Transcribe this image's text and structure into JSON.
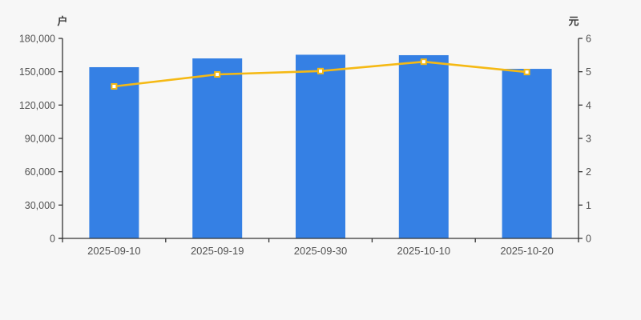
{
  "chart_data": {
    "type": "bar",
    "subtype": "bar-with-line-dual-axis",
    "categories": [
      "2025-09-10",
      "2025-09-19",
      "2025-09-30",
      "2025-10-10",
      "2025-10-20"
    ],
    "series": [
      {
        "id": "bar-series",
        "type": "bar",
        "axis": "left",
        "color": "#3580e4",
        "values": [
          154100,
          162000,
          165300,
          164900,
          152600
        ]
      },
      {
        "id": "line-series",
        "type": "line",
        "axis": "right",
        "color": "#f5b914",
        "marker": "square",
        "marker_fill": "#ffffff",
        "values": [
          4.56,
          4.92,
          5.02,
          5.3,
          4.99
        ]
      }
    ],
    "left_axis": {
      "title": "户",
      "min": 0,
      "max": 180000,
      "ticks": [
        0,
        30000,
        60000,
        90000,
        120000,
        150000,
        180000
      ],
      "tick_labels": [
        "0",
        "30,000",
        "60,000",
        "90,000",
        "120,000",
        "150,000",
        "180,000"
      ]
    },
    "right_axis": {
      "title": "元",
      "min": 0,
      "max": 6,
      "ticks": [
        0,
        1,
        2,
        3,
        4,
        5,
        6
      ],
      "tick_labels": [
        "0",
        "1",
        "2",
        "3",
        "4",
        "5",
        "6"
      ]
    },
    "grid": false,
    "legend": false,
    "background": "#f7f7f7",
    "axis_color": "#333333",
    "label_color": "#515151"
  }
}
